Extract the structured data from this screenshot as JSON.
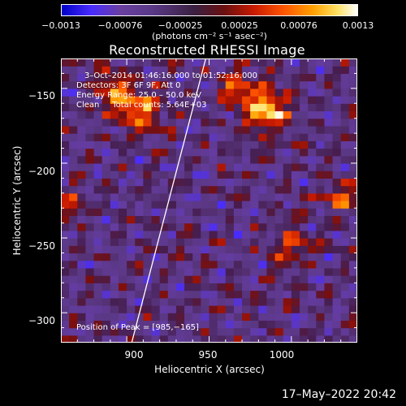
{
  "colorbar": {
    "ticks": [
      "−0.0013",
      "−0.00076",
      "−0.00025",
      "0.00025",
      "0.00076",
      "0.0013"
    ],
    "unit": "(photons cm⁻² s⁻¹ asec⁻²)"
  },
  "annotations": {
    "time": "3–Oct–2014 01:46:16.000 to 01:52:16.000",
    "detectors": "Detectors: 3F 6F 9F, Att 0",
    "energy": "Energy Range: 25.0 – 50.0 keV",
    "clean": "Clean     Total counts: 5.64E+03",
    "peak": "Position of Peak = [985,−165]"
  },
  "footer": {
    "date": "17–May–2022 20:42"
  },
  "chart_data": {
    "type": "heatmap",
    "title": "Reconstructed RHESSI Image",
    "xlabel": "Heliocentric X (arcsec)",
    "ylabel": "Heliocentric Y (arcsec)",
    "xlim": [
      860,
      1040
    ],
    "ylim": [
      -320,
      -130
    ],
    "xticks": [
      "900",
      "950",
      "1000"
    ],
    "yticks": [
      "−150",
      "−200",
      "−250",
      "−300"
    ],
    "colorbar_range": [
      -0.0013,
      0.0013
    ],
    "peak": [
      985,
      -165
    ],
    "limb_line": {
      "from": [
        903,
        -320
      ],
      "to": [
        948,
        -130
      ],
      "color": "#ffffff"
    }
  }
}
